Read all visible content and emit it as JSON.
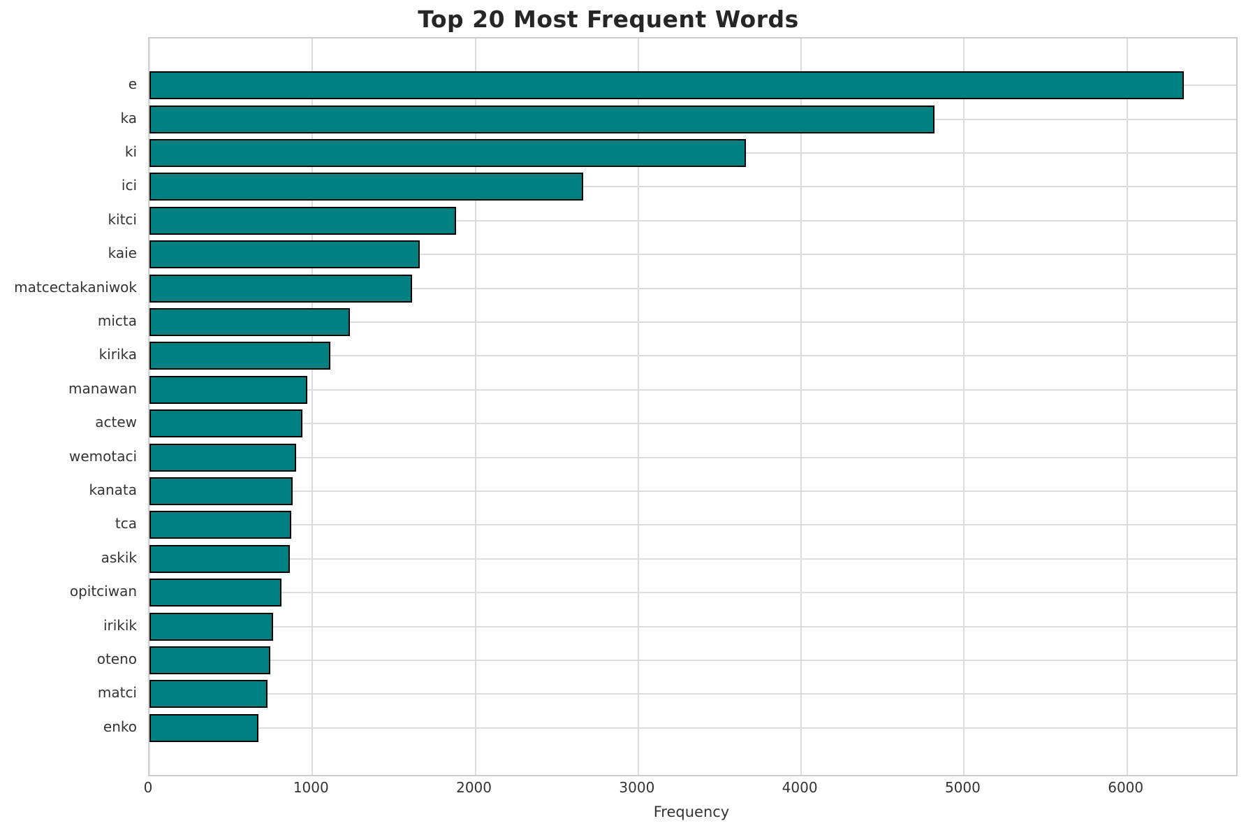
{
  "chart_data": {
    "type": "bar",
    "orientation": "horizontal",
    "title": "Top 20 Most Frequent Words",
    "xlabel": "Frequency",
    "ylabel": "",
    "categories": [
      "e",
      "ka",
      "ki",
      "ici",
      "kitci",
      "kaie",
      "matcectakaniwok",
      "micta",
      "kirika",
      "manawan",
      "actew",
      "wemotaci",
      "kanata",
      "tca",
      "askik",
      "opitciwan",
      "irikik",
      "oteno",
      "matci",
      "enko"
    ],
    "values": [
      6350,
      4820,
      3660,
      2660,
      1880,
      1660,
      1610,
      1230,
      1110,
      970,
      940,
      900,
      880,
      870,
      860,
      810,
      760,
      740,
      725,
      670
    ],
    "xticks": [
      0,
      1000,
      2000,
      3000,
      4000,
      5000,
      6000
    ],
    "xlim": [
      0,
      6670
    ],
    "grid": true,
    "legend": null,
    "bar_color": "#008080",
    "bar_edge_color": "#000000",
    "grid_color": "#dcdcdc",
    "spine_color": "#cccccc",
    "text_color": "#333333",
    "title_color": "#262626"
  }
}
